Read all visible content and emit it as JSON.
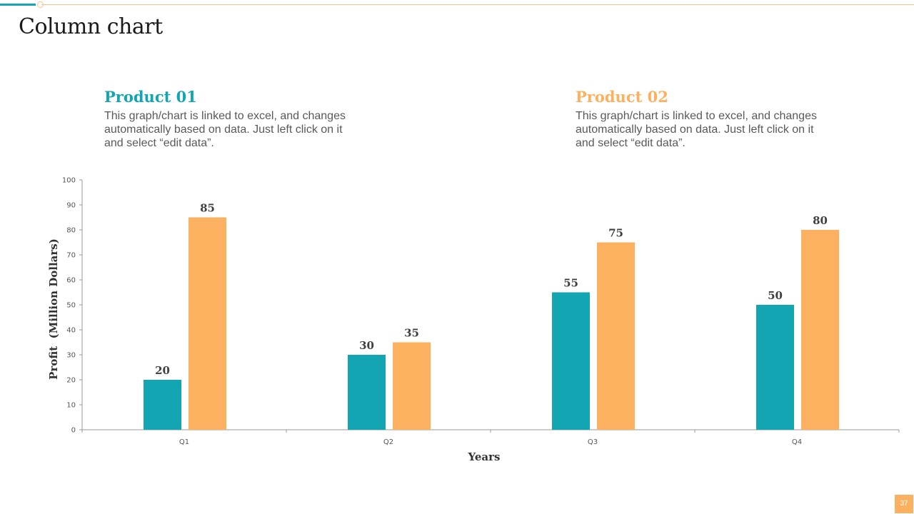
{
  "slide": {
    "title": "Column chart",
    "page_number": "37"
  },
  "colors": {
    "teal": "#13a6b2",
    "orange": "#fbb15f",
    "accent_line": "#f5c58e"
  },
  "legend_blocks": [
    {
      "heading": "Product 01",
      "description": "This graph/chart is linked to excel, and changes automatically based on data. Just left click on it and select “edit data”."
    },
    {
      "heading": "Product 02",
      "description": "This graph/chart is linked to excel, and changes automatically based on data. Just left click on it and select “edit data”."
    }
  ],
  "chart_data": {
    "type": "bar",
    "title": "Column chart",
    "categories": [
      "Q1",
      "Q2",
      "Q3",
      "Q4"
    ],
    "series": [
      {
        "name": "Product 01",
        "color": "#13a6b2",
        "values": [
          20,
          30,
          55,
          50
        ]
      },
      {
        "name": "Product 02",
        "color": "#fbb15f",
        "values": [
          85,
          35,
          75,
          80
        ]
      }
    ],
    "xlabel": "Years",
    "ylabel": "Profit  (Million Dollars)",
    "ylim": [
      0,
      100
    ],
    "yticks": [
      0,
      10,
      20,
      30,
      40,
      50,
      60,
      70,
      80,
      90,
      100
    ],
    "grid": false,
    "data_labels": true
  }
}
